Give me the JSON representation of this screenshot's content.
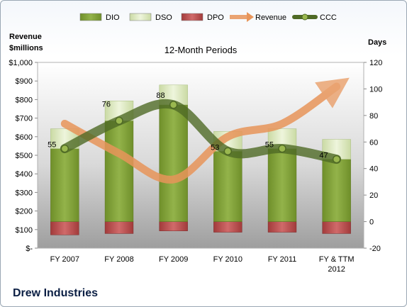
{
  "chart_data": {
    "type": "bar",
    "title": "12-Month Periods",
    "company": "Drew Industries",
    "left_axis_label_line1": "Revenue",
    "left_axis_label_line2": "$millions",
    "right_axis_label": "Days",
    "categories": [
      "FY 2007",
      "FY 2008",
      "FY 2009",
      "FY 2010",
      "FY 2011",
      "FY & TTM 2012"
    ],
    "category_lines": [
      [
        "FY 2007"
      ],
      [
        "FY 2008"
      ],
      [
        "FY 2009"
      ],
      [
        "FY 2010"
      ],
      [
        "FY 2011"
      ],
      [
        "FY & TTM",
        "2012"
      ]
    ],
    "left_ticks": [
      "$-",
      "$100",
      "$200",
      "$300",
      "$400",
      "$500",
      "$600",
      "$700",
      "$800",
      "$900",
      "$1,000"
    ],
    "right_ticks": [
      "-20",
      "0",
      "20",
      "40",
      "60",
      "80",
      "100",
      "120"
    ],
    "ylim_left": [
      0,
      1000
    ],
    "ylim_right": [
      -20,
      120
    ],
    "legend": [
      "DIO",
      "DSO",
      "DPO",
      "Revenue",
      "CCC"
    ],
    "series": [
      {
        "name": "DIO",
        "axis": "right",
        "values": [
          55,
          76,
          88,
          53,
          55,
          47
        ],
        "color": "#7f9f35"
      },
      {
        "name": "DSO",
        "axis": "right",
        "values": [
          15,
          15,
          15,
          15,
          15,
          15
        ],
        "color": "#d8e6b8"
      },
      {
        "name": "DPO",
        "axis": "right",
        "values": [
          -10,
          -9,
          -7,
          -8,
          -8,
          -9
        ],
        "color": "#b84a4a"
      },
      {
        "name": "Revenue",
        "axis": "left",
        "values": [
          670,
          510,
          370,
          600,
          670,
          870
        ],
        "color": "#e8955a"
      },
      {
        "name": "CCC",
        "axis": "right",
        "values": [
          55,
          76,
          88,
          53,
          55,
          47
        ],
        "color": "#5e7a30"
      }
    ],
    "data_labels": [
      "55",
      "76",
      "88",
      "53",
      "55",
      "47"
    ],
    "grid": false,
    "legend_position": "top"
  }
}
